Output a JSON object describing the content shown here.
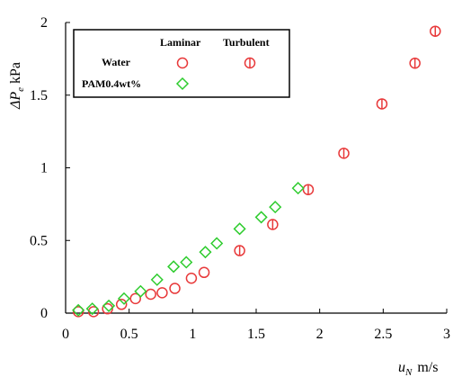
{
  "chart_data": {
    "type": "scatter",
    "title": "",
    "xlabel": "m/s",
    "xlabel_symbol": "u",
    "xlabel_sub": "N",
    "ylabel": "kPa",
    "ylabel_symbol": "ΔP",
    "ylabel_sub": "e",
    "xlim": [
      0,
      3
    ],
    "ylim": [
      0,
      2
    ],
    "xticks": [
      "0",
      "0.5",
      "1",
      "1.5",
      "2",
      "2.5",
      "3"
    ],
    "yticks": [
      "0",
      "0.5",
      "1",
      "1.5",
      "2"
    ],
    "grid": false,
    "legend": {
      "placement": "top-left",
      "col_headers": [
        "Laminar",
        "Turbulent"
      ],
      "row_labels": [
        "Water",
        "PAM0.4wt%"
      ]
    },
    "colors": {
      "water": "#e8393a",
      "pam": "#2ecc2e"
    },
    "series": [
      {
        "legend_row": "Water",
        "legend_col": "Laminar",
        "marker": "circle",
        "color": "#e8393a",
        "points": [
          [
            0.1,
            0.01
          ],
          [
            0.22,
            0.01
          ],
          [
            0.33,
            0.03
          ],
          [
            0.44,
            0.06
          ],
          [
            0.55,
            0.1
          ],
          [
            0.67,
            0.13
          ],
          [
            0.76,
            0.14
          ],
          [
            0.86,
            0.17
          ],
          [
            0.99,
            0.24
          ],
          [
            1.09,
            0.28
          ]
        ]
      },
      {
        "legend_row": "Water",
        "legend_col": "Turbulent",
        "marker": "circle-bar",
        "color": "#e8393a",
        "points": [
          [
            1.37,
            0.43
          ],
          [
            1.63,
            0.61
          ],
          [
            1.91,
            0.85
          ],
          [
            2.19,
            1.1
          ],
          [
            2.49,
            1.44
          ],
          [
            2.75,
            1.72
          ],
          [
            2.91,
            1.94
          ]
        ]
      },
      {
        "legend_row": "PAM0.4wt%",
        "legend_col": "Laminar",
        "marker": "diamond",
        "color": "#2ecc2e",
        "points": [
          [
            0.1,
            0.02
          ],
          [
            0.21,
            0.03
          ],
          [
            0.34,
            0.05
          ],
          [
            0.46,
            0.1
          ],
          [
            0.59,
            0.15
          ],
          [
            0.72,
            0.23
          ],
          [
            0.85,
            0.32
          ],
          [
            0.95,
            0.35
          ],
          [
            1.1,
            0.42
          ],
          [
            1.19,
            0.48
          ],
          [
            1.37,
            0.58
          ],
          [
            1.54,
            0.66
          ],
          [
            1.65,
            0.73
          ],
          [
            1.83,
            0.86
          ]
        ]
      }
    ]
  }
}
